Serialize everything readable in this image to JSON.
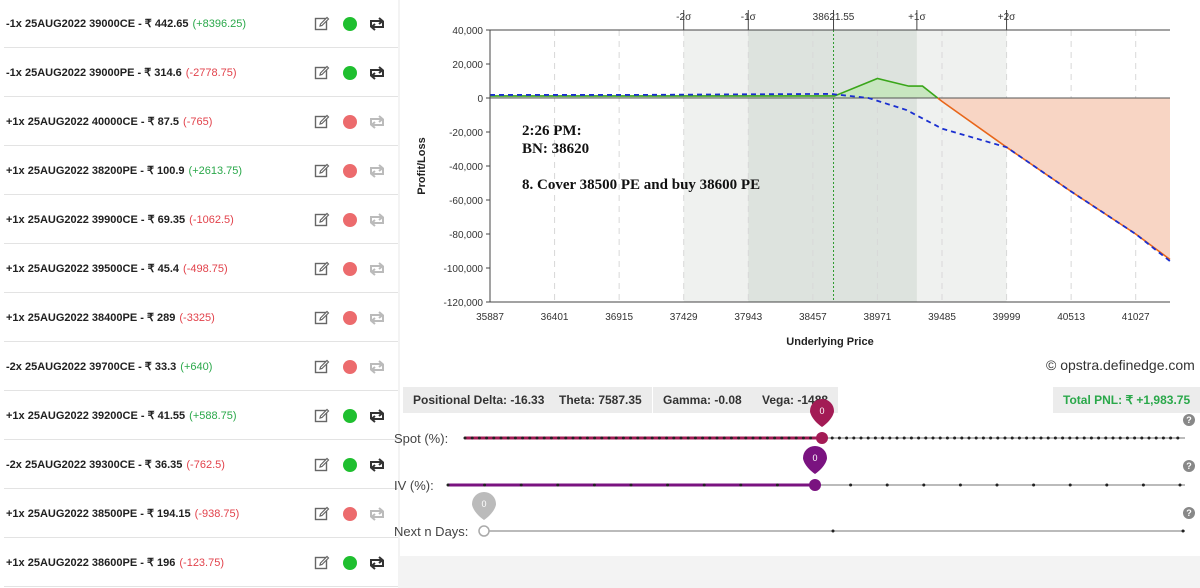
{
  "positions": [
    {
      "desc": "-1x  25AUG2022  39000CE - ₹ 442.65",
      "pnl": "(+8396.25)",
      "pnl_sign": "pos",
      "active": true
    },
    {
      "desc": "-1x  25AUG2022  39000PE - ₹ 314.6",
      "pnl": "(-2778.75)",
      "pnl_sign": "neg",
      "active": true
    },
    {
      "desc": "+1x  25AUG2022  40000CE - ₹ 87.5",
      "pnl": "(-765)",
      "pnl_sign": "neg",
      "active": false
    },
    {
      "desc": "+1x  25AUG2022  38200PE - ₹ 100.9",
      "pnl": "(+2613.75)",
      "pnl_sign": "pos",
      "active": false
    },
    {
      "desc": "+1x  25AUG2022  39900CE - ₹ 69.35",
      "pnl": "(-1062.5)",
      "pnl_sign": "neg",
      "active": false
    },
    {
      "desc": "+1x  25AUG2022  39500CE - ₹ 45.4",
      "pnl": "(-498.75)",
      "pnl_sign": "neg",
      "active": false
    },
    {
      "desc": "+1x  25AUG2022  38400PE - ₹ 289",
      "pnl": "(-3325)",
      "pnl_sign": "neg",
      "active": false
    },
    {
      "desc": "-2x  25AUG2022  39700CE - ₹ 33.3",
      "pnl": "(+640)",
      "pnl_sign": "pos",
      "active": false
    },
    {
      "desc": "+1x  25AUG2022  39200CE - ₹ 41.55",
      "pnl": "(+588.75)",
      "pnl_sign": "pos",
      "active": true
    },
    {
      "desc": "-2x  25AUG2022  39300CE - ₹ 36.35",
      "pnl": "(-762.5)",
      "pnl_sign": "neg",
      "active": true
    },
    {
      "desc": "+1x  25AUG2022  38500PE - ₹ 194.15",
      "pnl": "(-938.75)",
      "pnl_sign": "neg",
      "active": false
    },
    {
      "desc": "+1x  25AUG2022  38600PE - ₹ 196",
      "pnl": "(-123.75)",
      "pnl_sign": "neg",
      "active": true
    }
  ],
  "chart_data": {
    "type": "line",
    "xlabel": "Underlying Price",
    "ylabel": "Profit/Loss",
    "xlim": [
      35887,
      41300
    ],
    "ylim": [
      -120000,
      40000
    ],
    "x_ticks": [
      35887,
      36401,
      36915,
      37429,
      37943,
      38457,
      38971,
      39485,
      39999,
      40513,
      41027
    ],
    "y_ticks": [
      40000,
      20000,
      0,
      -20000,
      -40000,
      -60000,
      -80000,
      -100000,
      -120000
    ],
    "y_tick_labels": [
      "40,000",
      "20,000",
      "0",
      "-20,000",
      "-40,000",
      "-60,000",
      "-80,000",
      "-100,000",
      "-120,000"
    ],
    "sigma_markers": [
      {
        "label": "-2σ",
        "x": 37429
      },
      {
        "label": "-1σ",
        "x": 37943
      },
      {
        "label": "38621.55",
        "x": 38621.55
      },
      {
        "label": "+1σ",
        "x": 39285
      },
      {
        "label": "+2σ",
        "x": 39999
      }
    ],
    "spot": 38621.55,
    "series": [
      {
        "name": "expiry",
        "x": [
          35887,
          38630,
          38971,
          39220,
          39330,
          39485,
          40000,
          40513,
          41027,
          41300
        ],
        "y": [
          1200,
          1200,
          11500,
          7000,
          7000,
          -2000,
          -29000,
          -55000,
          -80000,
          -95000
        ]
      },
      {
        "name": "today",
        "x": [
          35887,
          37000,
          38000,
          38600,
          38900,
          39200,
          39485,
          40000,
          40513,
          41027,
          41300
        ],
        "y": [
          1800,
          1800,
          2200,
          2400,
          0,
          -7000,
          -18000,
          -29000,
          -55000,
          -80000,
          -96000
        ]
      }
    ],
    "annotation": [
      "2:26 PM:",
      "BN: 38620",
      "8. Cover 38500 PE and buy 38600 PE"
    ]
  },
  "watermark": "© opstra.definedge.com",
  "greeks": {
    "delta": "Positional Delta: -16.33",
    "theta": "Theta: 7587.35",
    "gamma": "Gamma: -0.08",
    "vega": "Vega: -1488",
    "total_pnl": "Total PNL: ₹ +1,983.75"
  },
  "sliders": {
    "spot": {
      "label": "Spot (%):",
      "value": "0"
    },
    "iv": {
      "label": "IV (%):",
      "value": "0"
    },
    "days": {
      "label": "Next n Days:",
      "value": "0"
    }
  },
  "colors": {
    "green_line": "#3aa61a",
    "orange_line": "#e8661a",
    "loss_fill": "#f8d5c4",
    "profit_fill": "#c8e6c0",
    "spot_slider": "#a31b55",
    "iv_slider": "#7a1380",
    "days_pin": "#bbbbbb"
  }
}
